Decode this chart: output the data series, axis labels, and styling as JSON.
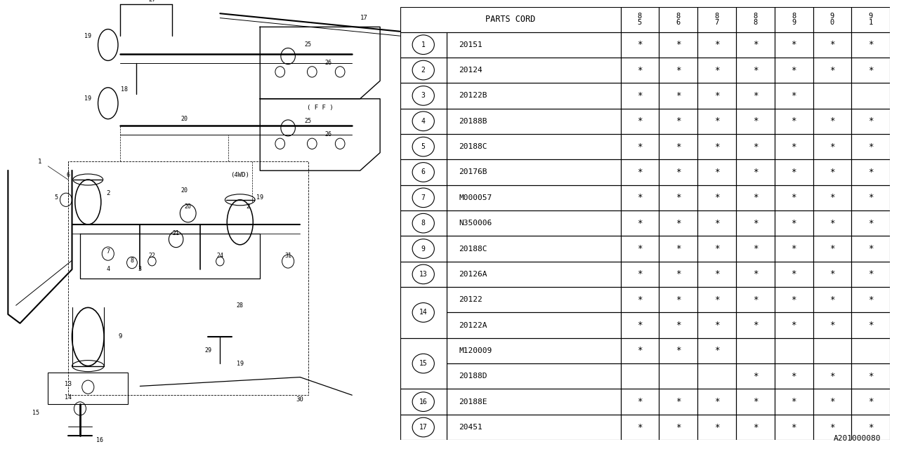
{
  "diagram_label": "A201000080",
  "bg_color": "#ffffff",
  "line_color": "#000000",
  "table": {
    "header_col1": "PARTS CORD",
    "year_cols": [
      "8\n5",
      "8\n6",
      "8\n7",
      "8\n8",
      "8\n9",
      "9\n0",
      "9\n1"
    ],
    "rows": [
      {
        "ref": "1",
        "part": "20151",
        "marks": [
          1,
          1,
          1,
          1,
          1,
          1,
          1
        ],
        "group": null
      },
      {
        "ref": "2",
        "part": "20124",
        "marks": [
          1,
          1,
          1,
          1,
          1,
          1,
          1
        ],
        "group": null
      },
      {
        "ref": "3",
        "part": "20122B",
        "marks": [
          1,
          1,
          1,
          1,
          1,
          0,
          0
        ],
        "group": null
      },
      {
        "ref": "4",
        "part": "20188B",
        "marks": [
          1,
          1,
          1,
          1,
          1,
          1,
          1
        ],
        "group": null
      },
      {
        "ref": "5",
        "part": "20188C",
        "marks": [
          1,
          1,
          1,
          1,
          1,
          1,
          1
        ],
        "group": null
      },
      {
        "ref": "6",
        "part": "20176B",
        "marks": [
          1,
          1,
          1,
          1,
          1,
          1,
          1
        ],
        "group": null
      },
      {
        "ref": "7",
        "part": "M000057",
        "marks": [
          1,
          1,
          1,
          1,
          1,
          1,
          1
        ],
        "group": null
      },
      {
        "ref": "8",
        "part": "N350006",
        "marks": [
          1,
          1,
          1,
          1,
          1,
          1,
          1
        ],
        "group": null
      },
      {
        "ref": "9",
        "part": "20188C",
        "marks": [
          1,
          1,
          1,
          1,
          1,
          1,
          1
        ],
        "group": null
      },
      {
        "ref": "13",
        "part": "20126A",
        "marks": [
          1,
          1,
          1,
          1,
          1,
          1,
          1
        ],
        "group": null
      },
      {
        "ref": "14",
        "part": "20122",
        "marks": [
          1,
          1,
          1,
          1,
          1,
          1,
          1
        ],
        "group": "14",
        "group_first": true
      },
      {
        "ref": "14",
        "part": "20122A",
        "marks": [
          1,
          1,
          1,
          1,
          1,
          1,
          1
        ],
        "group": "14",
        "group_first": false
      },
      {
        "ref": "15",
        "part": "M120009",
        "marks": [
          1,
          1,
          1,
          0,
          0,
          0,
          0
        ],
        "group": "15",
        "group_first": true
      },
      {
        "ref": "15",
        "part": "20188D",
        "marks": [
          0,
          0,
          0,
          1,
          1,
          1,
          1
        ],
        "group": "15",
        "group_first": false
      },
      {
        "ref": "16",
        "part": "20188E",
        "marks": [
          1,
          1,
          1,
          1,
          1,
          1,
          1
        ],
        "group": null
      },
      {
        "ref": "17",
        "part": "20451",
        "marks": [
          1,
          1,
          1,
          1,
          1,
          1,
          1
        ],
        "group": null
      }
    ]
  }
}
